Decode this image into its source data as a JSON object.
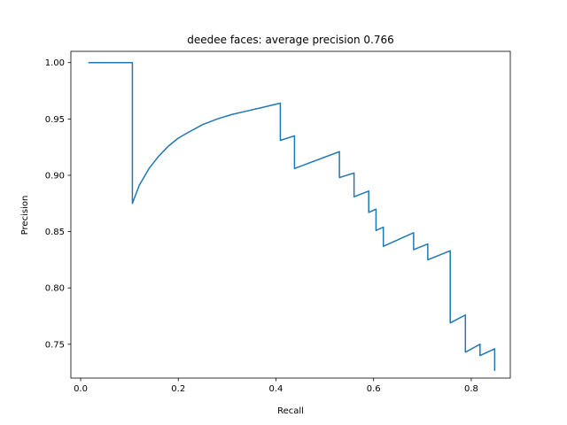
{
  "chart_data": {
    "type": "line",
    "title": "deedee faces: average precision 0.766",
    "xlabel": "Recall",
    "ylabel": "Precision",
    "xlim": [
      -0.02,
      0.88
    ],
    "ylim": [
      0.72,
      1.01
    ],
    "grid": false,
    "xticks": [
      0.0,
      0.2,
      0.4,
      0.6,
      0.8
    ],
    "xtick_labels": [
      "0.0",
      "0.2",
      "0.4",
      "0.6",
      "0.8"
    ],
    "yticks": [
      0.75,
      0.8,
      0.85,
      0.9,
      0.95,
      1.0
    ],
    "ytick_labels": [
      "0.75",
      "0.80",
      "0.85",
      "0.90",
      "0.95",
      "1.00"
    ],
    "series": [
      {
        "color": "#1f77b4",
        "x": [
          0.017,
          0.106,
          0.106,
          0.12,
          0.14,
          0.16,
          0.18,
          0.2,
          0.22,
          0.25,
          0.28,
          0.31,
          0.34,
          0.37,
          0.409,
          0.409,
          0.438,
          0.438,
          0.53,
          0.53,
          0.56,
          0.56,
          0.59,
          0.59,
          0.605,
          0.605,
          0.62,
          0.62,
          0.682,
          0.682,
          0.711,
          0.711,
          0.757,
          0.757,
          0.788,
          0.788,
          0.818,
          0.818,
          0.848,
          0.848
        ],
        "y": [
          1.0,
          1.0,
          0.875,
          0.891,
          0.906,
          0.917,
          0.926,
          0.933,
          0.938,
          0.945,
          0.95,
          0.954,
          0.957,
          0.96,
          0.964,
          0.931,
          0.935,
          0.906,
          0.921,
          0.898,
          0.902,
          0.881,
          0.886,
          0.867,
          0.87,
          0.851,
          0.854,
          0.837,
          0.849,
          0.834,
          0.839,
          0.825,
          0.833,
          0.769,
          0.776,
          0.743,
          0.75,
          0.74,
          0.746,
          0.727
        ]
      }
    ]
  }
}
